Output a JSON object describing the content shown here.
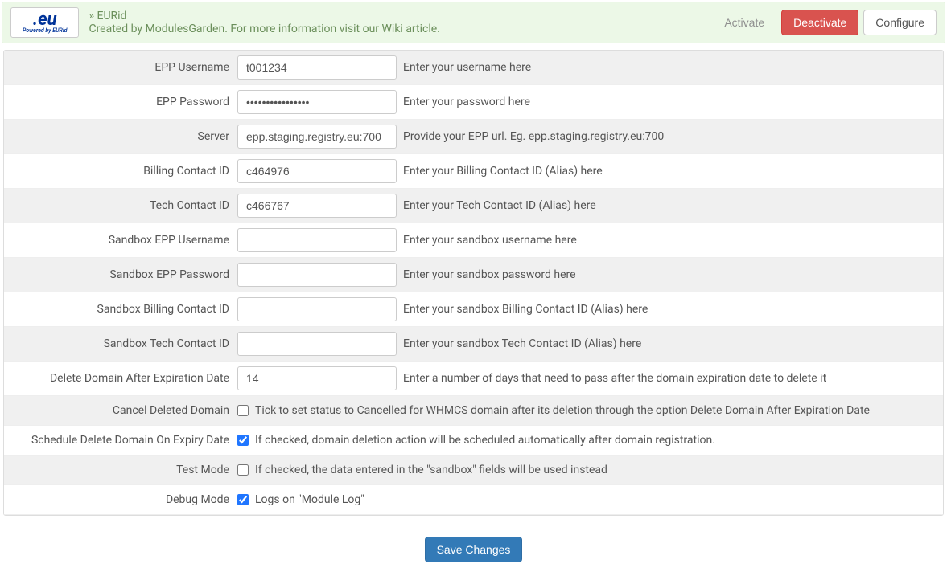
{
  "header": {
    "logo_text": ".eu",
    "logo_sub": "Powered by EURid",
    "title": "» EURid",
    "desc_prefix": "Created by ",
    "desc_link1": "ModulesGarden",
    "desc_mid": ". For more information visit our ",
    "desc_link2": "Wiki article",
    "desc_suffix": ".",
    "activate": "Activate",
    "deactivate": "Deactivate",
    "configure": "Configure"
  },
  "fields": {
    "epp_username": {
      "label": "EPP Username",
      "value": "t001234",
      "hint": "Enter your username here"
    },
    "epp_password": {
      "label": "EPP Password",
      "value": "••••••••••••••••",
      "hint": "Enter your password here"
    },
    "server": {
      "label": "Server",
      "value": "epp.staging.registry.eu:700",
      "hint": "Provide your EPP url. Eg. epp.staging.registry.eu:700"
    },
    "billing_contact": {
      "label": "Billing Contact ID",
      "value": "c464976",
      "hint": "Enter your Billing Contact ID (Alias) here"
    },
    "tech_contact": {
      "label": "Tech Contact ID",
      "value": "c466767",
      "hint": "Enter your Tech Contact ID (Alias) here"
    },
    "sandbox_user": {
      "label": "Sandbox EPP Username",
      "value": "",
      "hint": "Enter your sandbox username here"
    },
    "sandbox_pass": {
      "label": "Sandbox EPP Password",
      "value": "",
      "hint": "Enter your sandbox password here"
    },
    "sandbox_billing": {
      "label": "Sandbox Billing Contact ID",
      "value": "",
      "hint": "Enter your sandbox Billing Contact ID (Alias) here"
    },
    "sandbox_tech": {
      "label": "Sandbox Tech Contact ID",
      "value": "",
      "hint": "Enter your sandbox Tech Contact ID (Alias) here"
    },
    "delete_after": {
      "label": "Delete Domain After Expiration Date",
      "value": "14",
      "hint": "Enter a number of days that need to pass after the domain expiration date to delete it"
    },
    "cancel_deleted": {
      "label": "Cancel Deleted Domain",
      "checked": false,
      "hint": "Tick to set status to Cancelled for WHMCS domain after its deletion through the option Delete Domain After Expiration Date"
    },
    "schedule_delete": {
      "label": "Schedule Delete Domain On Expiry Date",
      "checked": true,
      "hint": "If checked, domain deletion action will be scheduled automatically after domain registration."
    },
    "test_mode": {
      "label": "Test Mode",
      "checked": false,
      "hint": "If checked, the data entered in the \"sandbox\" fields will be used instead"
    },
    "debug_mode": {
      "label": "Debug Mode",
      "checked": true,
      "hint": "Logs on \"Module Log\""
    }
  },
  "footer": {
    "save": "Save Changes"
  }
}
